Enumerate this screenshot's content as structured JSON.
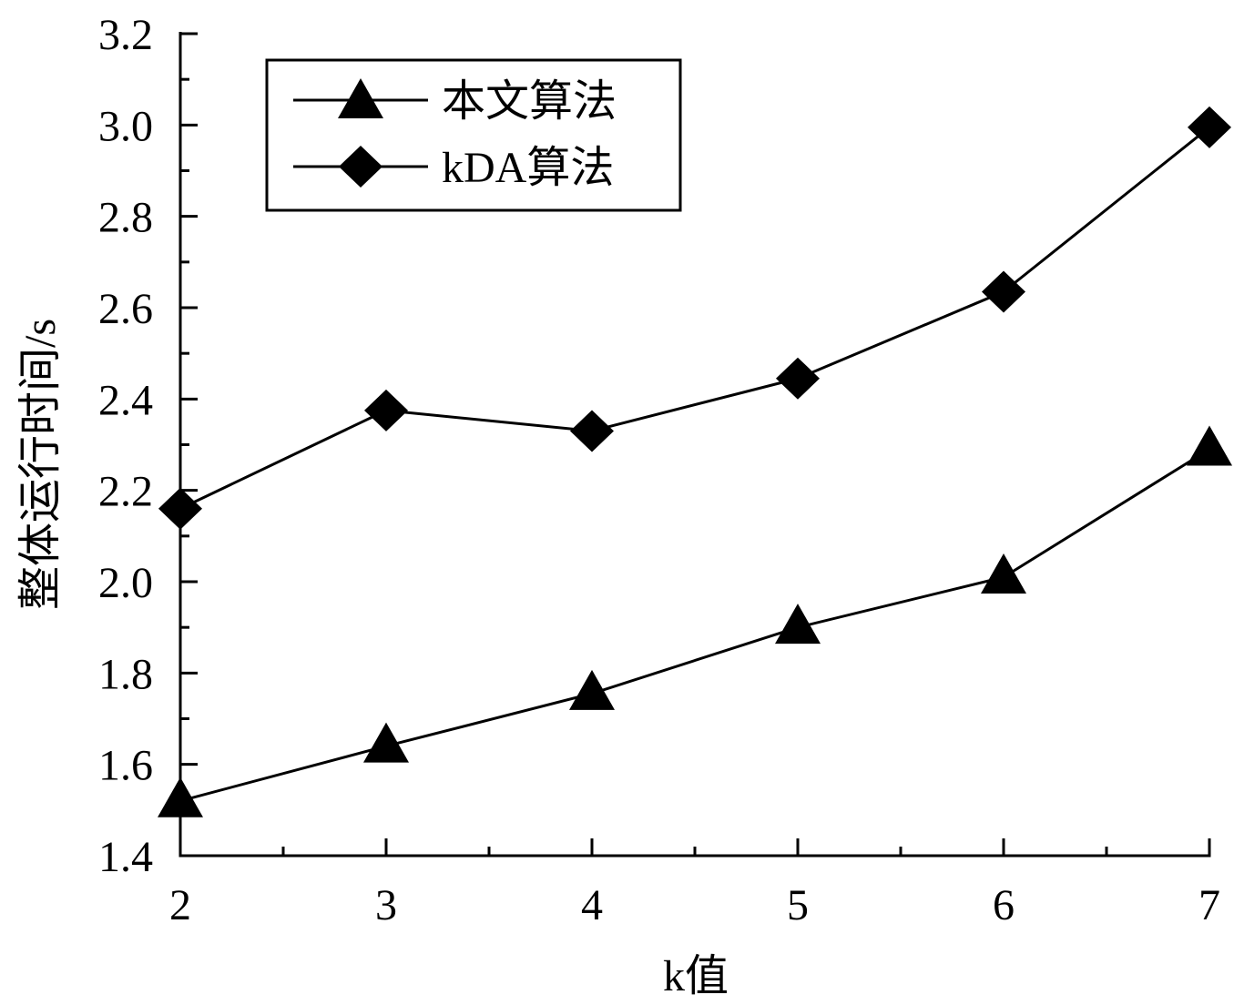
{
  "chart_data": {
    "type": "line",
    "title": "",
    "xlabel": "k值",
    "ylabel": "整体运行时间/s",
    "x": [
      2,
      3,
      4,
      5,
      6,
      7
    ],
    "xlim": [
      2,
      7
    ],
    "ylim": [
      1.4,
      3.2
    ],
    "x_ticks": [
      "2",
      "3",
      "4",
      "5",
      "6",
      "7"
    ],
    "y_ticks": [
      "1.4",
      "1.6",
      "1.8",
      "2.0",
      "2.2",
      "2.4",
      "2.6",
      "2.8",
      "3.0",
      "3.2"
    ],
    "y_tick_values": [
      1.4,
      1.6,
      1.8,
      2.0,
      2.2,
      2.4,
      2.6,
      2.8,
      3.0,
      3.2
    ],
    "grid": false,
    "legend_position": "top-left",
    "series": [
      {
        "name": "本文算法",
        "marker": "triangle",
        "values": [
          1.52,
          1.64,
          1.755,
          1.9,
          2.01,
          2.29
        ],
        "color": "#000000"
      },
      {
        "name": "kDA算法",
        "marker": "diamond",
        "values": [
          2.16,
          2.375,
          2.33,
          2.445,
          2.635,
          2.995
        ],
        "color": "#000000"
      }
    ]
  }
}
